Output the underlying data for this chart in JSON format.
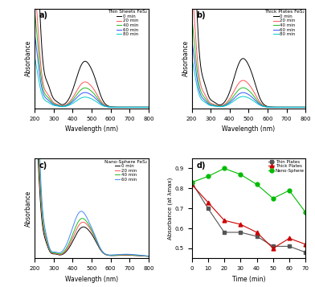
{
  "title_a": "Thin Sheets FeS₂",
  "title_b": "Thick Plates FeS₂",
  "title_c": "Nano-Sphere FeS₂",
  "xlabel": "Wavelength (nm)",
  "ylabel": "Absorbance",
  "xlabel_d": "Time (min)",
  "ylabel_d": "Absorbance (at λmax)",
  "panel_labels": [
    "a)",
    "b)",
    "c)",
    "d)"
  ],
  "colors_a": [
    "black",
    "#FF5555",
    "#22BB22",
    "#3355FF",
    "#00CCCC"
  ],
  "colors_b": [
    "black",
    "#FF5555",
    "#22BB22",
    "#3355FF",
    "#00CCCC"
  ],
  "colors_c": [
    "black",
    "#FF5555",
    "#22BB22",
    "#4488FF"
  ],
  "times_a": [
    "0 min",
    "20 min",
    "40 min",
    "60 min",
    "80 min"
  ],
  "times_b": [
    "0 min",
    "20 min",
    "40 min",
    "60 min",
    "80 min"
  ],
  "times_c": [
    "0 min",
    "20 min",
    "40 min",
    "60 min"
  ],
  "d_times": [
    0,
    10,
    20,
    30,
    40,
    50,
    60,
    70
  ],
  "thin_v": [
    0.83,
    0.7,
    0.58,
    0.58,
    0.56,
    0.51,
    0.51,
    0.48
  ],
  "thick_v": [
    0.82,
    0.73,
    0.64,
    0.62,
    0.58,
    0.5,
    0.55,
    0.52
  ],
  "ns_v": [
    0.83,
    0.86,
    0.9,
    0.87,
    0.82,
    0.75,
    0.79,
    0.68
  ],
  "d_colors": [
    "#555555",
    "#CC0000",
    "#00BB00"
  ],
  "d_markers": [
    "s",
    "^",
    "o"
  ],
  "d_labels": [
    "Thin Plates",
    "Thick Plates",
    "Nano-Sphere"
  ],
  "d_ylim": [
    0.45,
    0.95
  ],
  "d_yticks": [
    0.5,
    0.6,
    0.7,
    0.8,
    0.9
  ],
  "d_xlim": [
    0,
    70
  ],
  "d_xticks": [
    0,
    10,
    20,
    30,
    40,
    50,
    60,
    70
  ]
}
